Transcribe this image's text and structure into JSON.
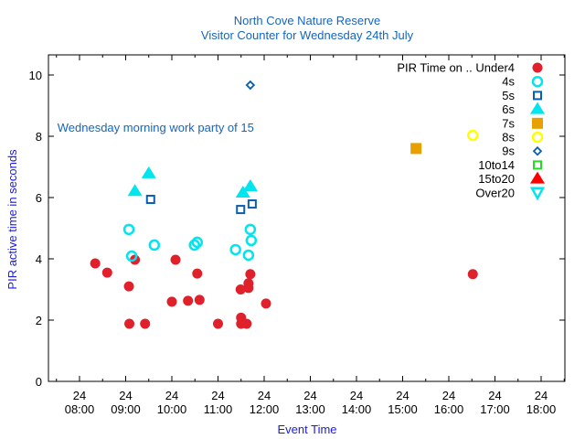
{
  "chart_data": {
    "type": "scatter",
    "title": "North Cove Nature Reserve",
    "subtitle": "Visitor Counter for Wednesday 24th July",
    "xlabel": "Event Time",
    "ylabel": "PIR active time in seconds",
    "xlim_hours": [
      7.33,
      18.52
    ],
    "ylim": [
      0,
      10.65
    ],
    "yticks": [
      "0",
      "2",
      "4",
      "6",
      "8",
      "10"
    ],
    "ytick_values": [
      0,
      2,
      4,
      6,
      8,
      10
    ],
    "xticks": [
      {
        "day": "24",
        "time": "08:00",
        "h": 8
      },
      {
        "day": "24",
        "time": "09:00",
        "h": 9
      },
      {
        "day": "24",
        "time": "10:00",
        "h": 10
      },
      {
        "day": "24",
        "time": "11:00",
        "h": 11
      },
      {
        "day": "24",
        "time": "12:00",
        "h": 12
      },
      {
        "day": "24",
        "time": "13:00",
        "h": 13
      },
      {
        "day": "24",
        "time": "14:00",
        "h": 14
      },
      {
        "day": "24",
        "time": "15:00",
        "h": 15
      },
      {
        "day": "24",
        "time": "16:00",
        "h": 16
      },
      {
        "day": "24",
        "time": "17:00",
        "h": 17
      },
      {
        "day": "24",
        "time": "18:00",
        "h": 18
      }
    ],
    "annotation": "Wednesday morning work party of 15",
    "annotation_at": {
      "h": 7.52,
      "y": 8.15
    },
    "legend_title": "PIR Time on ..",
    "legend_position": "top-right",
    "series": [
      {
        "name": "Under4",
        "marker": "filled-circle",
        "color": "#e0202a",
        "points": [
          [
            8.34,
            3.85
          ],
          [
            8.6,
            3.55
          ],
          [
            9.07,
            3.1
          ],
          [
            9.2,
            3.97
          ],
          [
            9.08,
            1.88
          ],
          [
            9.42,
            1.88
          ],
          [
            10.0,
            2.6
          ],
          [
            10.08,
            3.97
          ],
          [
            10.35,
            2.63
          ],
          [
            10.55,
            3.52
          ],
          [
            10.6,
            2.66
          ],
          [
            11.0,
            1.88
          ],
          [
            11.49,
            3.0
          ],
          [
            11.5,
            2.08
          ],
          [
            11.5,
            1.88
          ],
          [
            11.62,
            1.88
          ],
          [
            11.66,
            3.2
          ],
          [
            11.66,
            3.05
          ],
          [
            11.7,
            3.5
          ],
          [
            12.04,
            2.54
          ],
          [
            16.52,
            3.5
          ]
        ]
      },
      {
        "name": "4s",
        "marker": "open-circle",
        "color": "#00e5ee",
        "points": [
          [
            9.07,
            4.96
          ],
          [
            9.13,
            4.09
          ],
          [
            9.62,
            4.45
          ],
          [
            10.49,
            4.45
          ],
          [
            10.55,
            4.54
          ],
          [
            11.38,
            4.3
          ],
          [
            11.66,
            4.12
          ],
          [
            11.7,
            4.96
          ],
          [
            11.72,
            4.6
          ]
        ]
      },
      {
        "name": "5s",
        "marker": "open-square",
        "color": "#0b5fb0",
        "points": [
          [
            9.54,
            5.94
          ],
          [
            11.49,
            5.61
          ],
          [
            11.74,
            5.79
          ]
        ]
      },
      {
        "name": "6s",
        "marker": "filled-triangle",
        "color": "#00e5ee",
        "points": [
          [
            9.2,
            6.2
          ],
          [
            9.5,
            6.78
          ],
          [
            11.54,
            6.15
          ],
          [
            11.7,
            6.36
          ]
        ]
      },
      {
        "name": "7s",
        "marker": "filled-square",
        "color": "#e8a000",
        "points": [
          [
            15.29,
            7.6
          ]
        ]
      },
      {
        "name": "8s",
        "marker": "open-circle",
        "color": "#ffff00",
        "points": [
          [
            16.52,
            8.03
          ]
        ]
      },
      {
        "name": "9s",
        "marker": "open-diamond",
        "color": "#0b5fb0",
        "points": [
          [
            11.7,
            9.67
          ]
        ]
      },
      {
        "name": "10to14",
        "marker": "open-square",
        "color": "#22dd22",
        "points": []
      },
      {
        "name": "15to20",
        "marker": "filled-triangle",
        "color": "#ff0000",
        "points": []
      },
      {
        "name": "Over20",
        "marker": "open-triangle-down",
        "color": "#00e5ee",
        "points": []
      }
    ]
  }
}
